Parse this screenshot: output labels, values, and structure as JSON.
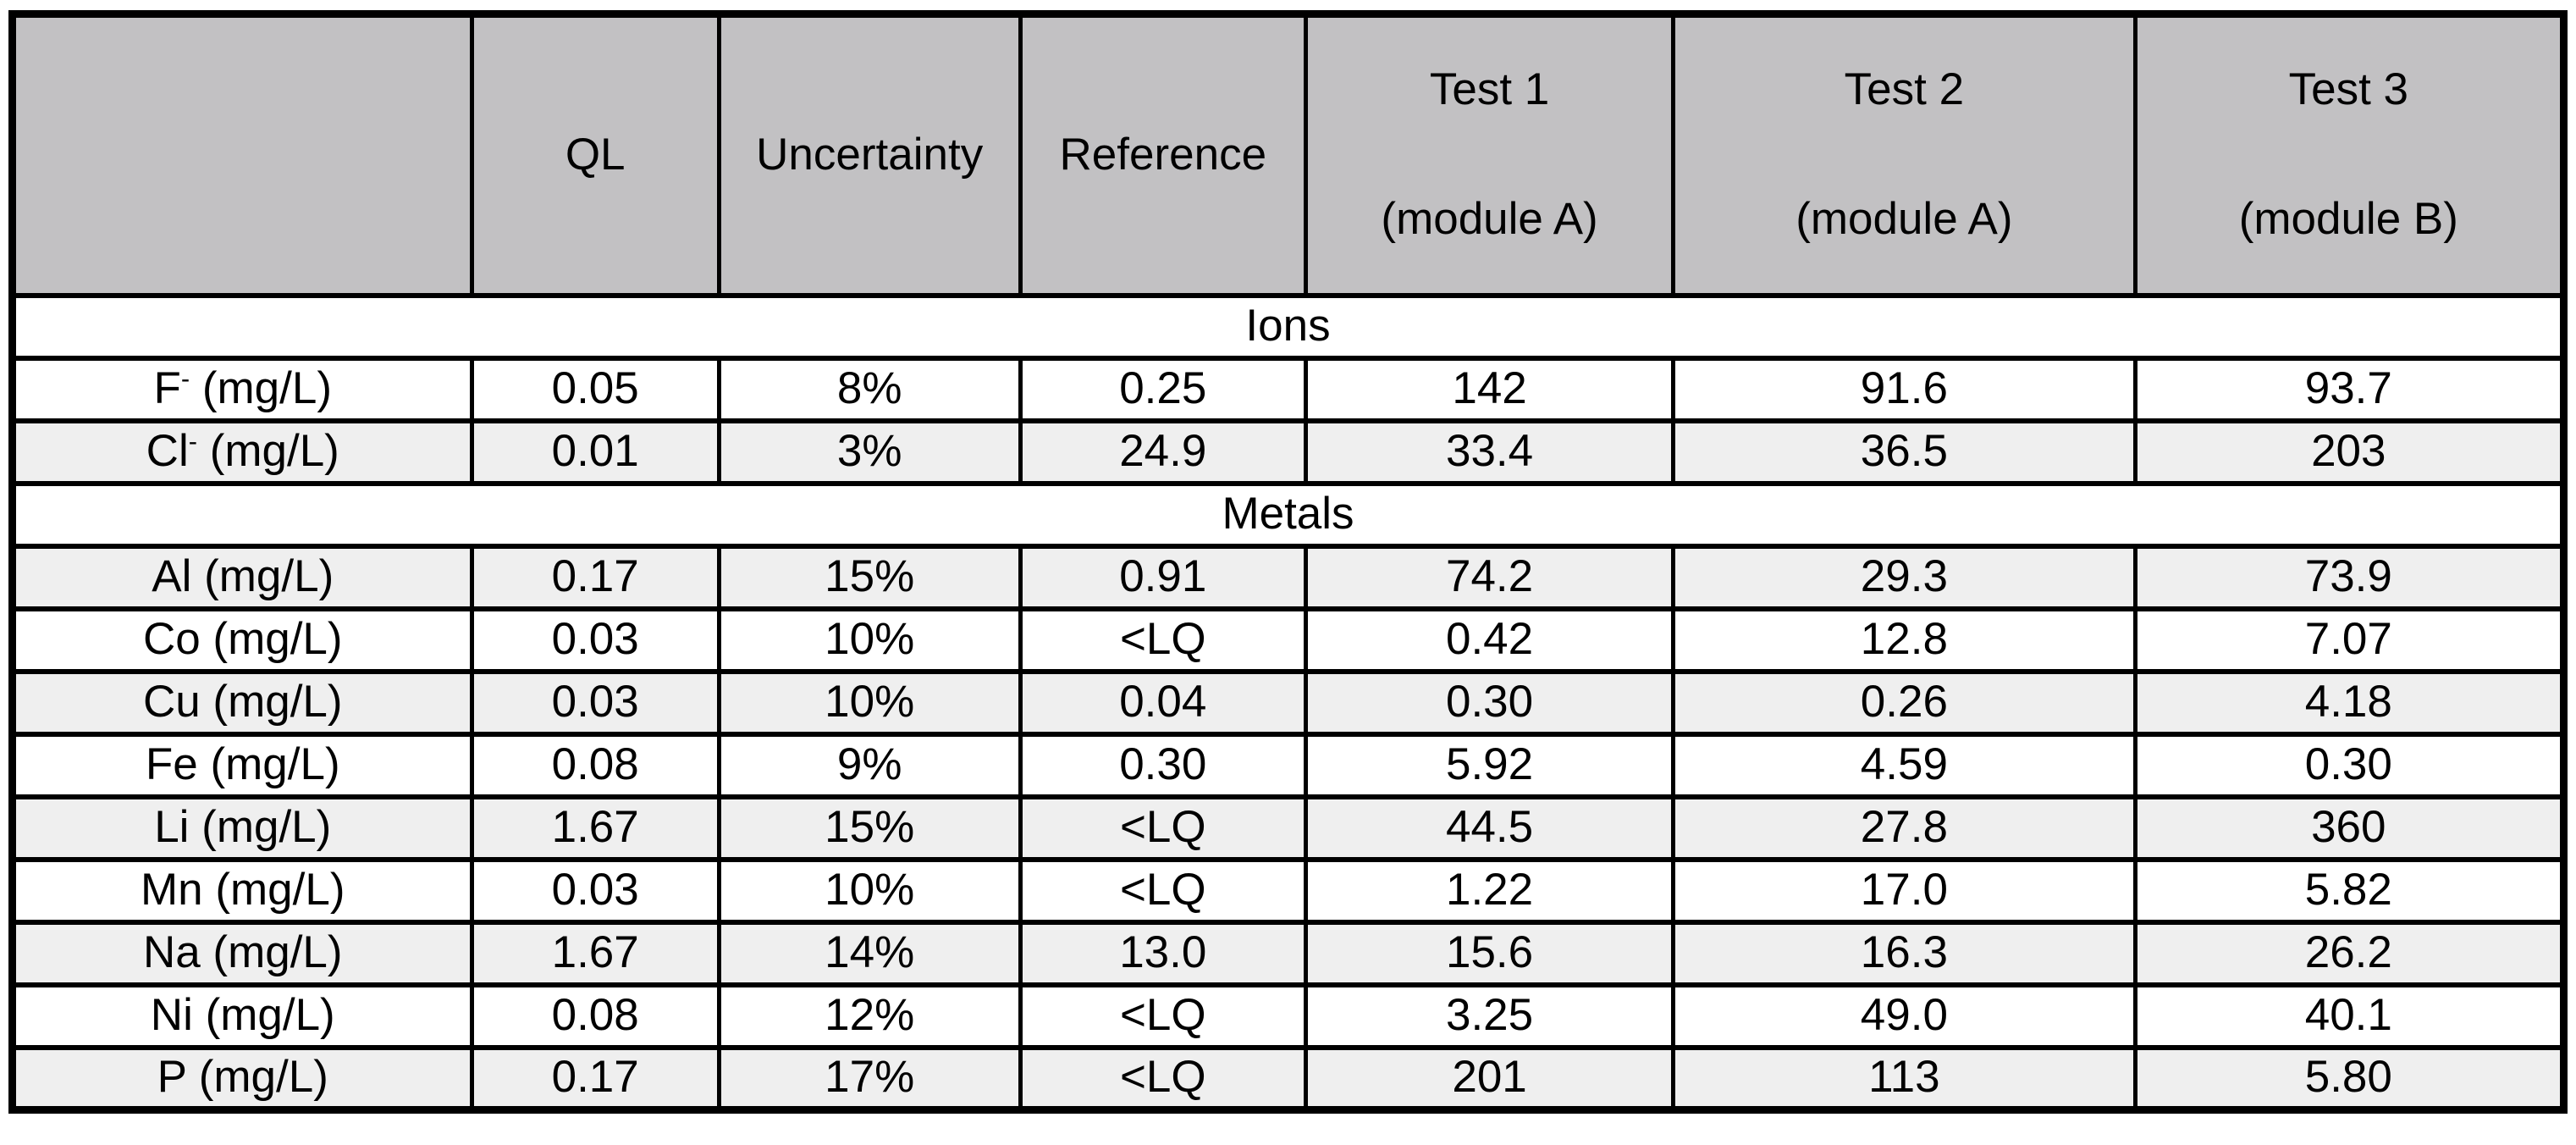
{
  "colors": {
    "header_background": "#c2c1c3",
    "stripe_background": "#efefef",
    "row_background": "#ffffff",
    "border": "#000000"
  },
  "table": {
    "columns": [
      {
        "label": ""
      },
      {
        "label": "QL"
      },
      {
        "label": "Uncertainty"
      },
      {
        "label": "Reference"
      },
      {
        "line1": "Test 1",
        "line2": "(module A)"
      },
      {
        "line1": "Test 2",
        "line2": "(module A)"
      },
      {
        "line1": "Test 3",
        "line2": "(module B)"
      }
    ],
    "sections": [
      {
        "title": "Ions",
        "rows": [
          {
            "analyte": "F",
            "charge": "-",
            "unit": "(mg/L)",
            "ql": "0.05",
            "uncertainty": "8%",
            "reference": "0.25",
            "test1": "142",
            "test2": "91.6",
            "test3": "93.7",
            "shaded": false
          },
          {
            "analyte": "Cl",
            "charge": "-",
            "unit": "(mg/L)",
            "ql": "0.01",
            "uncertainty": "3%",
            "reference": "24.9",
            "test1": "33.4",
            "test2": "36.5",
            "test3": "203",
            "shaded": true
          }
        ]
      },
      {
        "title": "Metals",
        "rows": [
          {
            "analyte": "Al",
            "charge": "",
            "unit": "(mg/L)",
            "ql": "0.17",
            "uncertainty": "15%",
            "reference": "0.91",
            "test1": "74.2",
            "test2": "29.3",
            "test3": "73.9",
            "shaded": true
          },
          {
            "analyte": "Co",
            "charge": "",
            "unit": "(mg/L)",
            "ql": "0.03",
            "uncertainty": "10%",
            "reference": "<LQ",
            "test1": "0.42",
            "test2": "12.8",
            "test3": "7.07",
            "shaded": false
          },
          {
            "analyte": "Cu",
            "charge": "",
            "unit": "(mg/L)",
            "ql": "0.03",
            "uncertainty": "10%",
            "reference": "0.04",
            "test1": "0.30",
            "test2": "0.26",
            "test3": "4.18",
            "shaded": true
          },
          {
            "analyte": "Fe",
            "charge": "",
            "unit": "(mg/L)",
            "ql": "0.08",
            "uncertainty": "9%",
            "reference": "0.30",
            "test1": "5.92",
            "test2": "4.59",
            "test3": "0.30",
            "shaded": false
          },
          {
            "analyte": "Li",
            "charge": "",
            "unit": "(mg/L)",
            "ql": "1.67",
            "uncertainty": "15%",
            "reference": "<LQ",
            "test1": "44.5",
            "test2": "27.8",
            "test3": "360",
            "shaded": true
          },
          {
            "analyte": "Mn",
            "charge": "",
            "unit": "(mg/L)",
            "ql": "0.03",
            "uncertainty": "10%",
            "reference": "<LQ",
            "test1": "1.22",
            "test2": "17.0",
            "test3": "5.82",
            "shaded": false
          },
          {
            "analyte": "Na",
            "charge": "",
            "unit": "(mg/L)",
            "ql": "1.67",
            "uncertainty": "14%",
            "reference": "13.0",
            "test1": "15.6",
            "test2": "16.3",
            "test3": "26.2",
            "shaded": true
          },
          {
            "analyte": "Ni",
            "charge": "",
            "unit": "(mg/L)",
            "ql": "0.08",
            "uncertainty": "12%",
            "reference": "<LQ",
            "test1": "3.25",
            "test2": "49.0",
            "test3": "40.1",
            "shaded": false
          },
          {
            "analyte": "P",
            "charge": "",
            "unit": "(mg/L)",
            "ql": "0.17",
            "uncertainty": "17%",
            "reference": "<LQ",
            "test1": "201",
            "test2": "113",
            "test3": "5.80",
            "shaded": true
          }
        ]
      }
    ]
  }
}
